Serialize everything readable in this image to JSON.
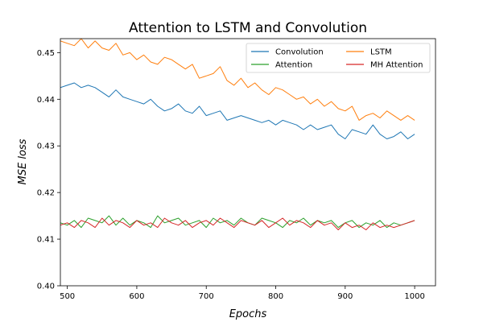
{
  "chart_data": {
    "type": "line",
    "title": "Attention to LSTM and Convolution",
    "xlabel": "Epochs",
    "ylabel": "MSE loss",
    "xlim": [
      490,
      1030
    ],
    "ylim": [
      0.4,
      0.453
    ],
    "xticks": [
      "500",
      "600",
      "700",
      "800",
      "900",
      "1000"
    ],
    "yticks": [
      "0.40",
      "0.41",
      "0.42",
      "0.43",
      "0.44",
      "0.45"
    ],
    "grid": false,
    "legend": {
      "placement": "top-right",
      "columns": 2
    },
    "x": [
      490,
      500,
      510,
      520,
      530,
      540,
      550,
      560,
      570,
      580,
      590,
      600,
      610,
      620,
      630,
      640,
      650,
      660,
      670,
      680,
      690,
      700,
      710,
      720,
      730,
      740,
      750,
      760,
      770,
      780,
      790,
      800,
      810,
      820,
      830,
      840,
      850,
      860,
      870,
      880,
      890,
      900,
      910,
      920,
      930,
      940,
      950,
      960,
      970,
      980,
      990,
      1000
    ],
    "series": [
      {
        "name": "Convolution",
        "color": "#1f77b4",
        "values": [
          0.4425,
          0.443,
          0.4435,
          0.4425,
          0.443,
          0.4425,
          0.4415,
          0.4405,
          0.442,
          0.4405,
          0.44,
          0.4395,
          0.439,
          0.44,
          0.4385,
          0.4375,
          0.438,
          0.439,
          0.4375,
          0.437,
          0.4385,
          0.4365,
          0.437,
          0.4375,
          0.4355,
          0.436,
          0.4365,
          0.436,
          0.4355,
          0.435,
          0.4355,
          0.4345,
          0.4355,
          0.435,
          0.4345,
          0.4335,
          0.4345,
          0.4335,
          0.434,
          0.4345,
          0.4325,
          0.4315,
          0.4335,
          0.433,
          0.4325,
          0.4345,
          0.4325,
          0.4315,
          0.432,
          0.433,
          0.4315,
          0.4325
        ]
      },
      {
        "name": "LSTM",
        "color": "#ff7f0e",
        "values": [
          0.4525,
          0.452,
          0.4515,
          0.453,
          0.451,
          0.4525,
          0.451,
          0.4505,
          0.452,
          0.4495,
          0.45,
          0.4485,
          0.4495,
          0.448,
          0.4475,
          0.449,
          0.4485,
          0.4475,
          0.4465,
          0.4475,
          0.4445,
          0.445,
          0.4455,
          0.447,
          0.444,
          0.443,
          0.4445,
          0.4425,
          0.4435,
          0.442,
          0.441,
          0.4425,
          0.442,
          0.441,
          0.44,
          0.4405,
          0.439,
          0.44,
          0.4385,
          0.4395,
          0.438,
          0.4375,
          0.4385,
          0.4355,
          0.4365,
          0.437,
          0.436,
          0.4375,
          0.4365,
          0.4355,
          0.4365,
          0.4355
        ]
      },
      {
        "name": "Attention",
        "color": "#2ca02c",
        "values": [
          0.4135,
          0.413,
          0.414,
          0.4125,
          0.4145,
          0.414,
          0.4135,
          0.415,
          0.413,
          0.4145,
          0.413,
          0.414,
          0.4135,
          0.4125,
          0.415,
          0.4135,
          0.414,
          0.4145,
          0.413,
          0.4135,
          0.414,
          0.4125,
          0.4145,
          0.4135,
          0.414,
          0.413,
          0.4145,
          0.4135,
          0.413,
          0.4145,
          0.414,
          0.4135,
          0.4125,
          0.414,
          0.4135,
          0.4145,
          0.413,
          0.414,
          0.4135,
          0.414,
          0.4125,
          0.4135,
          0.414,
          0.4125,
          0.4135,
          0.413,
          0.414,
          0.4125,
          0.4135,
          0.413,
          0.4135,
          0.414
        ]
      },
      {
        "name": "MH Attention",
        "color": "#d62728",
        "values": [
          0.413,
          0.4135,
          0.4125,
          0.414,
          0.4135,
          0.4125,
          0.4145,
          0.413,
          0.414,
          0.4135,
          0.4125,
          0.414,
          0.413,
          0.4135,
          0.4125,
          0.4145,
          0.4135,
          0.413,
          0.414,
          0.4125,
          0.4135,
          0.414,
          0.413,
          0.4145,
          0.4135,
          0.4125,
          0.414,
          0.4135,
          0.413,
          0.414,
          0.4125,
          0.4135,
          0.4145,
          0.413,
          0.414,
          0.4135,
          0.4125,
          0.414,
          0.413,
          0.4135,
          0.412,
          0.4135,
          0.4125,
          0.413,
          0.412,
          0.4135,
          0.4125,
          0.413,
          0.4125,
          0.413,
          0.4135,
          0.414
        ]
      }
    ]
  }
}
